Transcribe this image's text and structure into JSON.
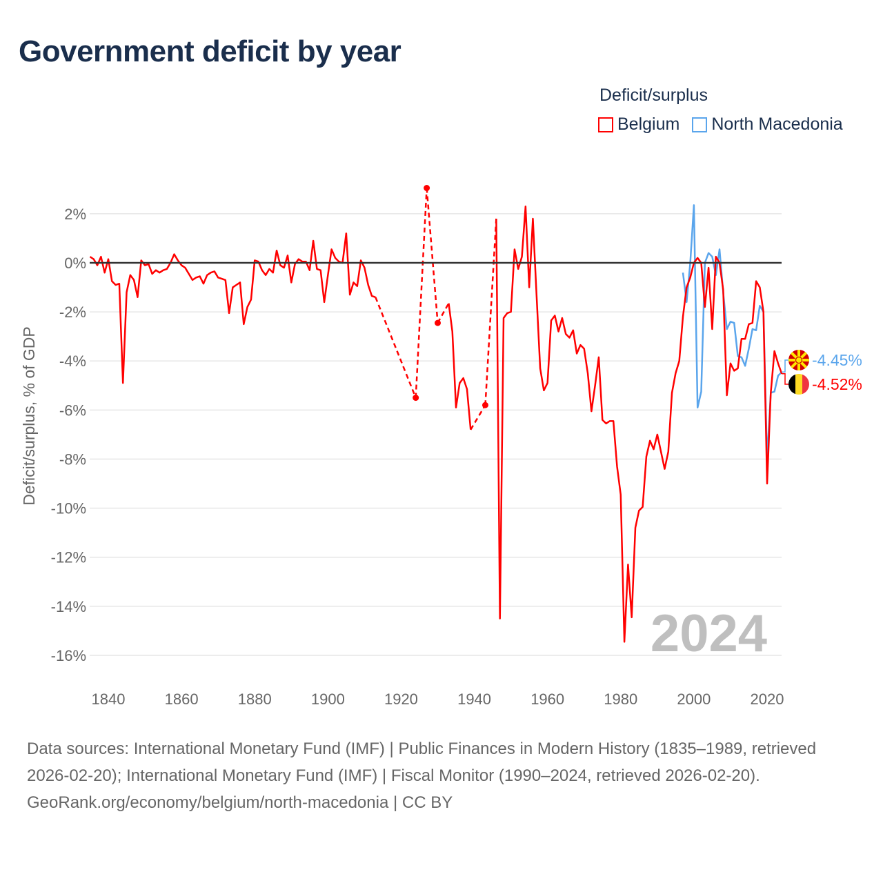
{
  "title": "Government deficit by year",
  "legend": {
    "title": "Deficit/surplus",
    "items": [
      {
        "label": "Belgium",
        "color": "#ff0000"
      },
      {
        "label": "North Macedonia",
        "color": "#5aa5ec"
      }
    ]
  },
  "footer": {
    "sources": "Data sources: International Monetary Fund (IMF) | Public Finances in Modern History (1835–1989, retrieved 2026-02-20); International Monetary Fund (IMF) | Fiscal Monitor (1990–2024, retrieved 2026-02-20).",
    "credit": "GeoRank.org/economy/belgium/north-macedonia | CC BY"
  },
  "chart_data": {
    "type": "line",
    "title": "Government deficit by year",
    "xlabel": "",
    "ylabel": "Deficit/surplus, % of GDP",
    "xlim": [
      1835,
      2024
    ],
    "ylim": [
      -17,
      3.5
    ],
    "x_ticks": [
      1840,
      1860,
      1880,
      1900,
      1920,
      1940,
      1960,
      1980,
      2000,
      2020
    ],
    "y_ticks": [
      2,
      0,
      -2,
      -4,
      -6,
      -8,
      -10,
      -12,
      -14,
      -16
    ],
    "y_tick_labels": [
      "2%",
      "0%",
      "-2%",
      "-4%",
      "-6%",
      "-8%",
      "-10%",
      "-12%",
      "-14%",
      "-16%"
    ],
    "grid": true,
    "legend_position": "top-right",
    "year_watermark": "2024",
    "end_labels": [
      {
        "series": "North Macedonia",
        "text": "-4.45%"
      },
      {
        "series": "Belgium",
        "text": "-4.52%"
      }
    ],
    "series": [
      {
        "name": "Belgium",
        "color": "#ff0000",
        "x": [
          1835,
          1836,
          1837,
          1838,
          1839,
          1840,
          1841,
          1842,
          1843,
          1844,
          1845,
          1846,
          1847,
          1848,
          1849,
          1850,
          1851,
          1852,
          1853,
          1854,
          1855,
          1856,
          1857,
          1858,
          1859,
          1860,
          1861,
          1862,
          1863,
          1864,
          1865,
          1866,
          1867,
          1868,
          1869,
          1870,
          1871,
          1872,
          1873,
          1874,
          1875,
          1876,
          1877,
          1878,
          1879,
          1880,
          1881,
          1882,
          1883,
          1884,
          1885,
          1886,
          1887,
          1888,
          1889,
          1890,
          1891,
          1892,
          1893,
          1894,
          1895,
          1896,
          1897,
          1898,
          1899,
          1900,
          1901,
          1902,
          1903,
          1904,
          1905,
          1906,
          1907,
          1908,
          1909,
          1910,
          1911,
          1912,
          1913,
          1924,
          1927,
          1930,
          1933,
          1934,
          1935,
          1936,
          1937,
          1938,
          1939,
          1943,
          1946,
          1947,
          1948,
          1949,
          1950,
          1951,
          1952,
          1953,
          1954,
          1955,
          1956,
          1957,
          1958,
          1959,
          1960,
          1961,
          1962,
          1963,
          1964,
          1965,
          1966,
          1967,
          1968,
          1969,
          1970,
          1971,
          1972,
          1973,
          1974,
          1975,
          1976,
          1977,
          1978,
          1979,
          1980,
          1981,
          1982,
          1983,
          1984,
          1985,
          1986,
          1987,
          1988,
          1989,
          1990,
          1991,
          1992,
          1993,
          1994,
          1995,
          1996,
          1997,
          1998,
          1999,
          2000,
          2001,
          2002,
          2003,
          2004,
          2005,
          2006,
          2007,
          2008,
          2009,
          2010,
          2011,
          2012,
          2013,
          2014,
          2015,
          2016,
          2017,
          2018,
          2019,
          2020,
          2021,
          2022,
          2023,
          2024
        ],
        "y": [
          0.25,
          0.15,
          -0.1,
          0.25,
          -0.4,
          0.15,
          -0.75,
          -0.9,
          -0.85,
          -4.9,
          -1.2,
          -0.5,
          -0.7,
          -1.4,
          0.1,
          -0.1,
          -0.05,
          -0.45,
          -0.3,
          -0.4,
          -0.3,
          -0.25,
          0.0,
          0.35,
          0.1,
          -0.1,
          -0.2,
          -0.45,
          -0.7,
          -0.6,
          -0.55,
          -0.85,
          -0.5,
          -0.4,
          -0.35,
          -0.6,
          -0.65,
          -0.7,
          -2.05,
          -1.0,
          -0.9,
          -0.8,
          -2.5,
          -1.8,
          -1.5,
          0.1,
          0.05,
          -0.3,
          -0.5,
          -0.25,
          -0.4,
          0.5,
          -0.1,
          -0.2,
          0.3,
          -0.8,
          -0.05,
          0.15,
          0.05,
          0.05,
          -0.3,
          0.9,
          -0.25,
          -0.3,
          -1.6,
          -0.5,
          0.55,
          0.2,
          0.05,
          0.0,
          1.2,
          -1.3,
          -0.8,
          -0.95,
          0.1,
          -0.2,
          -0.9,
          -1.35,
          -1.4,
          -5.5,
          3.05,
          -2.45,
          -1.65,
          -2.8,
          -5.9,
          -4.9,
          -4.7,
          -5.15,
          -6.8,
          -5.8,
          1.8,
          -14.5,
          -2.25,
          -2.05,
          -2.0,
          0.55,
          -0.25,
          0.25,
          2.3,
          -1.0,
          1.8,
          -1.3,
          -4.3,
          -5.2,
          -4.9,
          -2.35,
          -2.15,
          -2.8,
          -2.25,
          -2.9,
          -3.05,
          -2.75,
          -3.7,
          -3.35,
          -3.5,
          -4.5,
          -6.05,
          -5.0,
          -3.85,
          -6.4,
          -6.55,
          -6.45,
          -6.45,
          -8.3,
          -9.45,
          -15.45,
          -12.3,
          -14.45,
          -10.8,
          -10.1,
          -9.95,
          -7.9,
          -7.25,
          -7.6,
          -7.0,
          -7.7,
          -8.4,
          -7.7,
          -5.3,
          -4.5,
          -4.0,
          -2.2,
          -1.0,
          -0.6,
          0.0,
          0.2,
          0.0,
          -1.8,
          -0.2,
          -2.7,
          0.25,
          0.0,
          -1.1,
          -5.4,
          -4.1,
          -4.4,
          -4.3,
          -3.1,
          -3.1,
          -2.5,
          -2.45,
          -0.75,
          -1.0,
          -2.0,
          -9.0,
          -5.3,
          -3.6,
          -4.1,
          -4.52
        ]
      },
      {
        "name": "North Macedonia",
        "color": "#5aa5ec",
        "x": [
          1997,
          1998,
          1999,
          2000,
          2001,
          2002,
          2003,
          2004,
          2005,
          2006,
          2007,
          2008,
          2009,
          2010,
          2011,
          2012,
          2013,
          2014,
          2015,
          2016,
          2017,
          2018,
          2019,
          2020,
          2021,
          2022,
          2023,
          2024
        ],
        "y": [
          -0.4,
          -1.6,
          0.0,
          2.35,
          -5.9,
          -5.25,
          0.0,
          0.4,
          0.25,
          -0.5,
          0.55,
          -1.2,
          -2.7,
          -2.4,
          -2.45,
          -3.8,
          -3.85,
          -4.2,
          -3.5,
          -2.7,
          -2.75,
          -1.75,
          -2.0,
          -8.05,
          -5.3,
          -5.25,
          -4.6,
          -4.45
        ]
      }
    ]
  }
}
